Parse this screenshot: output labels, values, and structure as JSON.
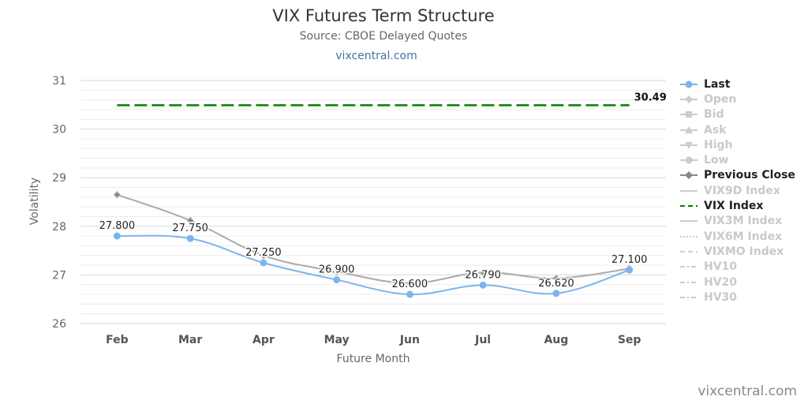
{
  "title": "VIX Futures Term Structure",
  "subtitle": "Source: CBOE Delayed Quotes",
  "credit_top": "vixcentral.com",
  "credit_bottom": "vixcentral.com",
  "colors": {
    "last": "#7cb5ec",
    "prev": "#aaaaaa",
    "vix": "#008000",
    "muted": "#cccccc"
  },
  "legend": [
    {
      "label": "Last",
      "active": true,
      "symbol": "line-circle",
      "color": "#7cb5ec"
    },
    {
      "label": "Open",
      "active": false,
      "symbol": "line-diamond",
      "color": "#cccccc"
    },
    {
      "label": "Bid",
      "active": false,
      "symbol": "line-square",
      "color": "#cccccc"
    },
    {
      "label": "Ask",
      "active": false,
      "symbol": "line-triangle",
      "color": "#cccccc"
    },
    {
      "label": "High",
      "active": false,
      "symbol": "line-triangle-down",
      "color": "#cccccc"
    },
    {
      "label": "Low",
      "active": false,
      "symbol": "line-circle",
      "color": "#cccccc"
    },
    {
      "label": "Previous Close",
      "active": true,
      "symbol": "line-diamond",
      "color": "#888888"
    },
    {
      "label": "VIX9D Index",
      "active": false,
      "symbol": "line",
      "color": "#cccccc"
    },
    {
      "label": "VIX Index",
      "active": true,
      "symbol": "dash",
      "color": "#008000"
    },
    {
      "label": "VIX3M Index",
      "active": false,
      "symbol": "line",
      "color": "#cccccc"
    },
    {
      "label": "VIX6M Index",
      "active": false,
      "symbol": "dot",
      "color": "#cccccc"
    },
    {
      "label": "VIXMO Index",
      "active": false,
      "symbol": "dash",
      "color": "#cccccc"
    },
    {
      "label": "HV10",
      "active": false,
      "symbol": "dashdot",
      "color": "#cccccc"
    },
    {
      "label": "HV20",
      "active": false,
      "symbol": "dashdot",
      "color": "#cccccc"
    },
    {
      "label": "HV30",
      "active": false,
      "symbol": "dashdot",
      "color": "#cccccc"
    }
  ],
  "chart_data": {
    "type": "line",
    "categories": [
      "Feb",
      "Mar",
      "Apr",
      "May",
      "Jun",
      "Jul",
      "Aug",
      "Sep"
    ],
    "xlabel": "Future Month",
    "ylabel": "Volatility",
    "ylim": [
      26,
      31
    ],
    "yticks": [
      26,
      27,
      28,
      29,
      30,
      31
    ],
    "grid": true,
    "legend_position": "right",
    "series": [
      {
        "name": "Last",
        "values": [
          27.8,
          27.75,
          27.25,
          26.9,
          26.6,
          26.79,
          26.62,
          27.1
        ],
        "labels": [
          "27.800",
          "27.750",
          "27.250",
          "26.900",
          "26.600",
          "26.790",
          "26.620",
          "27.100"
        ],
        "color": "#7cb5ec"
      },
      {
        "name": "Previous Close",
        "values": [
          28.65,
          28.12,
          27.4,
          27.07,
          26.83,
          27.05,
          26.93,
          27.13
        ],
        "color": "#aaaaaa"
      },
      {
        "name": "VIX Index",
        "value": 30.49,
        "label": "30.49",
        "color": "#008000",
        "style": "dashed"
      }
    ]
  }
}
